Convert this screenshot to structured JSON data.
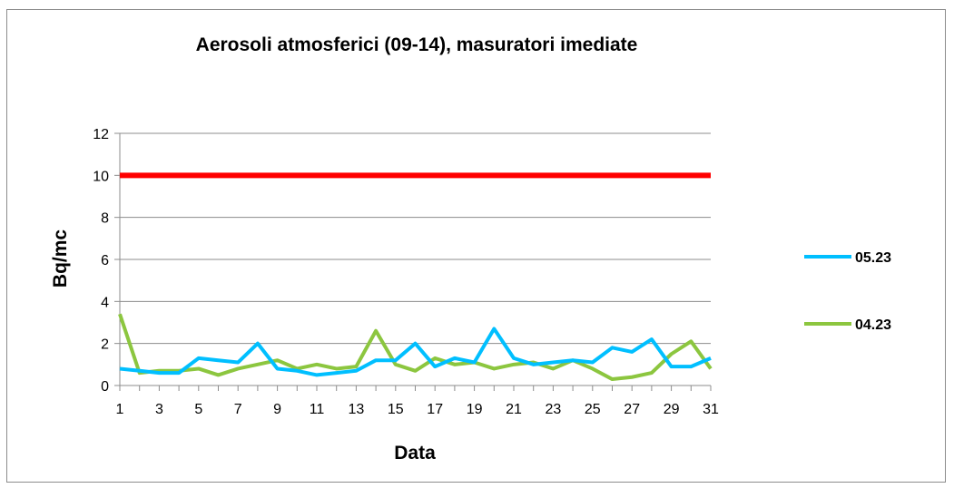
{
  "chart_data": {
    "type": "line",
    "title": "Aerosoli atmosferici (09-14), masuratori imediate",
    "xlabel": "Data",
    "ylabel": "Bq/mc",
    "ylim": [
      0,
      12
    ],
    "y_ticks": [
      0,
      2,
      4,
      6,
      8,
      10,
      12
    ],
    "x_tick_labels": [
      "1",
      "3",
      "5",
      "7",
      "9",
      "11",
      "13",
      "15",
      "17",
      "19",
      "21",
      "23",
      "25",
      "27",
      "29",
      "31"
    ],
    "x": [
      1,
      2,
      3,
      4,
      5,
      6,
      7,
      8,
      9,
      10,
      11,
      12,
      13,
      14,
      15,
      16,
      17,
      18,
      19,
      20,
      21,
      22,
      23,
      24,
      25,
      26,
      27,
      28,
      29,
      30,
      31
    ],
    "grid": true,
    "legend_position": "right",
    "threshold": {
      "value": 10,
      "color": "#ff0000"
    },
    "series": [
      {
        "name": "05.23",
        "color": "#00bfff",
        "values": [
          0.8,
          0.7,
          0.6,
          0.6,
          1.3,
          1.2,
          1.1,
          2.0,
          0.8,
          0.7,
          0.5,
          0.6,
          0.7,
          1.2,
          1.2,
          2.0,
          0.9,
          1.3,
          1.1,
          2.7,
          1.3,
          1.0,
          1.1,
          1.2,
          1.1,
          1.8,
          1.6,
          2.2,
          0.9,
          0.9,
          1.3
        ]
      },
      {
        "name": "04.23",
        "color": "#8cc63f",
        "values": [
          3.4,
          0.6,
          0.7,
          0.7,
          0.8,
          0.5,
          0.8,
          1.0,
          1.2,
          0.8,
          1.0,
          0.8,
          0.9,
          2.6,
          1.0,
          0.7,
          1.3,
          1.0,
          1.1,
          0.8,
          1.0,
          1.1,
          0.8,
          1.2,
          0.8,
          0.3,
          0.4,
          0.6,
          1.5,
          2.1,
          0.8
        ]
      }
    ]
  }
}
